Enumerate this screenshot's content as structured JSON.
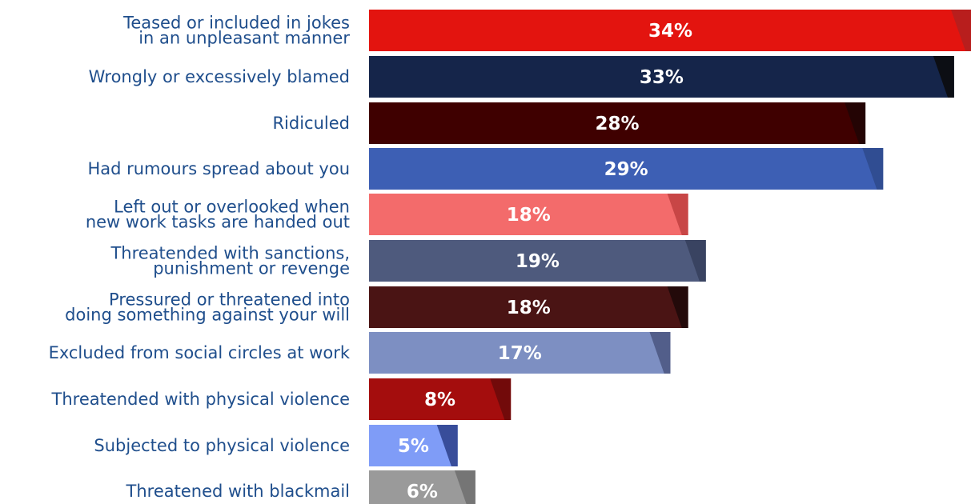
{
  "chart_data": {
    "type": "bar",
    "orientation": "horizontal",
    "categories": [
      "Teased or included in jokes in an unpleasant manner",
      "Wrongly or excessively blamed",
      "Ridiculed",
      "Had rumours spread about you",
      "Left out or overlooked when new work tasks are handed out",
      "Threatended with sanctions, punishment or revenge",
      "Pressured or threatened into doing something against your will",
      "Excluded from social circles at work",
      "Threatended with physical violence",
      "Subjected to physical violence",
      "Threatened with blackmail"
    ],
    "category_lines": [
      [
        "Teased or included in jokes",
        "in an unpleasant manner"
      ],
      [
        "Wrongly or excessively blamed"
      ],
      [
        "Ridiculed"
      ],
      [
        "Had rumours spread about you"
      ],
      [
        "Left out or overlooked when",
        "new work tasks are handed out"
      ],
      [
        "Threatended with sanctions,",
        "punishment or revenge"
      ],
      [
        "Pressured or threatened into",
        "doing something against your will"
      ],
      [
        "Excluded from social circles at work"
      ],
      [
        "Threatended with physical violence"
      ],
      [
        "Subjected to physical violence"
      ],
      [
        "Threatened with blackmail"
      ]
    ],
    "values": [
      34,
      33,
      28,
      29,
      18,
      19,
      18,
      17,
      8,
      5,
      6
    ],
    "value_labels": [
      "34%",
      "33%",
      "28%",
      "29%",
      "18%",
      "19%",
      "18%",
      "17%",
      "8%",
      "5%",
      "6%"
    ],
    "unit": "%",
    "xlim": [
      0,
      34
    ],
    "colors": [
      "#e3140f",
      "#15254a",
      "#3f0000",
      "#3d5fb4",
      "#f36b6b",
      "#4e5a7d",
      "#4a1414",
      "#7d8fc2",
      "#a40d0d",
      "#7f9cf7",
      "#9a9a9a"
    ],
    "shadow_colors": [
      "#b02020",
      "#0b0b0b",
      "#200505",
      "#2e4a8c",
      "#c04040",
      "#363f5c",
      "#1c0808",
      "#4a5680",
      "#6a0a0a",
      "#2c3f8a",
      "#6e6e6e"
    ],
    "grid": false,
    "legend": "none"
  }
}
